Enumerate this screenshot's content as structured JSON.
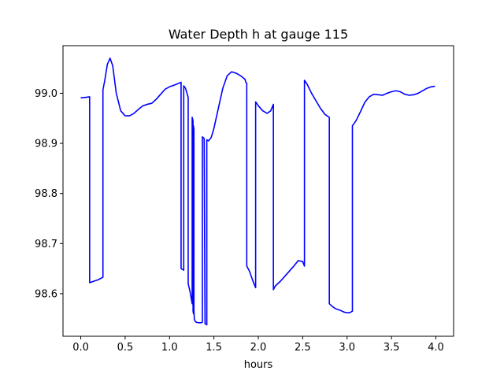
{
  "chart_data": {
    "type": "line",
    "title": "Water Depth h at gauge 115",
    "xlabel": "hours",
    "ylabel": "",
    "xlim": [
      -0.2,
      4.2
    ],
    "ylim": [
      98.515,
      99.095
    ],
    "xticks": [
      0.0,
      0.5,
      1.0,
      1.5,
      2.0,
      2.5,
      3.0,
      3.5,
      4.0
    ],
    "xtick_labels": [
      "0.0",
      "0.5",
      "1.0",
      "1.5",
      "2.0",
      "2.5",
      "3.0",
      "3.5",
      "4.0"
    ],
    "yticks": [
      98.6,
      98.7,
      98.8,
      98.9,
      99.0
    ],
    "ytick_labels": [
      "98.6",
      "98.7",
      "98.8",
      "98.9",
      "99.0"
    ],
    "grid": false,
    "line_color": "#0000ff",
    "series": [
      {
        "x": [
          0.0,
          0.06,
          0.1,
          0.1,
          0.15,
          0.2,
          0.25,
          0.25,
          0.27,
          0.3,
          0.33,
          0.36,
          0.4,
          0.45,
          0.5,
          0.55,
          0.6,
          0.65,
          0.7,
          0.75,
          0.8,
          0.85,
          0.9,
          0.95,
          1.0,
          1.05,
          1.09,
          1.13,
          1.13,
          1.15,
          1.16,
          1.16,
          1.18,
          1.21,
          1.21,
          1.23,
          1.245,
          1.255,
          1.255,
          1.265,
          1.265,
          1.27,
          1.27,
          1.275,
          1.275,
          1.28,
          1.29,
          1.3,
          1.33,
          1.36,
          1.37,
          1.37,
          1.39,
          1.4,
          1.42,
          1.42,
          1.44,
          1.47,
          1.5,
          1.55,
          1.6,
          1.65,
          1.7,
          1.75,
          1.8,
          1.85,
          1.86,
          1.87,
          1.87,
          1.9,
          1.94,
          1.97,
          1.97,
          2.0,
          2.05,
          2.1,
          2.14,
          2.17,
          2.17,
          2.19,
          2.25,
          2.3,
          2.35,
          2.4,
          2.45,
          2.5,
          2.52,
          2.52,
          2.55,
          2.6,
          2.65,
          2.7,
          2.75,
          2.8,
          2.8,
          2.83,
          2.87,
          2.92,
          2.97,
          3.0,
          3.03,
          3.06,
          3.06,
          3.1,
          3.15,
          3.2,
          3.25,
          3.3,
          3.35,
          3.4,
          3.45,
          3.5,
          3.55,
          3.6,
          3.65,
          3.7,
          3.75,
          3.8,
          3.85,
          3.9,
          3.95,
          3.99
        ],
        "y": [
          98.991,
          98.992,
          98.993,
          98.622,
          98.625,
          98.628,
          98.633,
          99.007,
          99.025,
          99.058,
          99.07,
          99.055,
          99.0,
          98.965,
          98.955,
          98.955,
          98.96,
          98.968,
          98.975,
          98.978,
          98.98,
          98.988,
          98.998,
          99.008,
          99.013,
          99.016,
          99.019,
          99.022,
          98.65,
          98.648,
          98.647,
          99.015,
          99.01,
          98.992,
          98.62,
          98.605,
          98.59,
          98.58,
          98.952,
          98.945,
          98.565,
          98.56,
          98.935,
          98.928,
          98.565,
          98.548,
          98.545,
          98.543,
          98.542,
          98.542,
          98.543,
          98.913,
          98.91,
          98.54,
          98.538,
          98.907,
          98.905,
          98.912,
          98.93,
          98.97,
          99.01,
          99.035,
          99.043,
          99.04,
          99.035,
          99.028,
          99.022,
          99.02,
          98.655,
          98.645,
          98.625,
          98.612,
          98.983,
          98.975,
          98.965,
          98.96,
          98.965,
          98.978,
          98.608,
          98.615,
          98.625,
          98.635,
          98.645,
          98.655,
          98.666,
          98.664,
          98.655,
          99.026,
          99.018,
          99.0,
          98.985,
          98.97,
          98.958,
          98.952,
          98.58,
          98.575,
          98.57,
          98.567,
          98.563,
          98.562,
          98.562,
          98.565,
          98.935,
          98.945,
          98.963,
          98.982,
          98.993,
          98.998,
          98.997,
          98.996,
          99.0,
          99.003,
          99.005,
          99.003,
          98.998,
          98.996,
          98.997,
          99.0,
          99.005,
          99.01,
          99.013,
          99.014
        ]
      }
    ]
  }
}
